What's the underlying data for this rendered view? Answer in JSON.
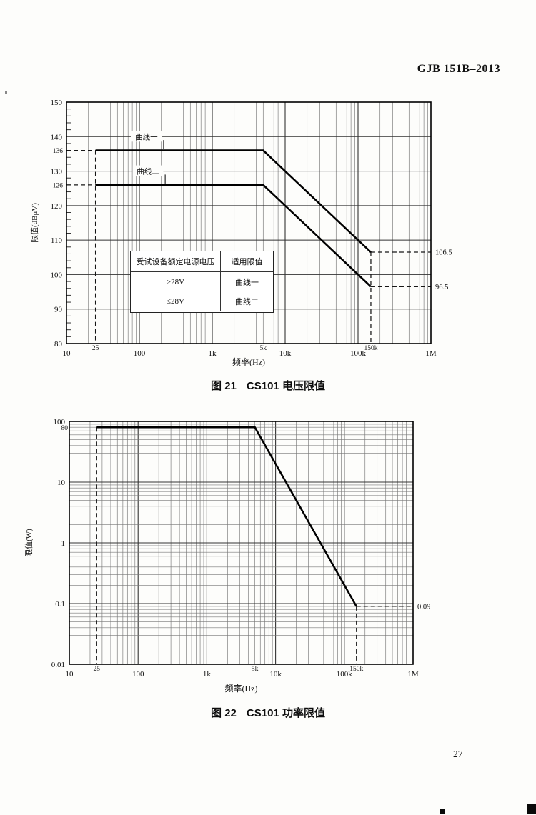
{
  "page": {
    "header": "GJB 151B–2013",
    "page_number": "27"
  },
  "chart_data": [
    {
      "id": "voltage-limit",
      "type": "line",
      "caption": {
        "label": "图 21",
        "title": "CS101 电压限值"
      },
      "xlabel": "频率(Hz)",
      "ylabel": "限值(dBμV)",
      "xscale": "log",
      "yscale": "linear",
      "xlim": [
        10,
        1000000
      ],
      "ylim": [
        80,
        150
      ],
      "grid": "on",
      "xticks": [
        {
          "v": 10,
          "label": "10",
          "kind": "major"
        },
        {
          "v": 25,
          "label": "25",
          "kind": "special"
        },
        {
          "v": 100,
          "label": "100",
          "kind": "major"
        },
        {
          "v": 1000,
          "label": "1k",
          "kind": "major"
        },
        {
          "v": 5000,
          "label": "5k",
          "kind": "special"
        },
        {
          "v": 10000,
          "label": "10k",
          "kind": "major"
        },
        {
          "v": 100000,
          "label": "100k",
          "kind": "major"
        },
        {
          "v": 150000,
          "label": "150k",
          "kind": "special"
        },
        {
          "v": 1000000,
          "label": "1M",
          "kind": "major"
        }
      ],
      "yticks": [
        {
          "v": 150,
          "label": "150",
          "kind": "major"
        },
        {
          "v": 140,
          "label": "140",
          "kind": "major"
        },
        {
          "v": 136,
          "label": "136",
          "kind": "special"
        },
        {
          "v": 130,
          "label": "130",
          "kind": "major"
        },
        {
          "v": 126,
          "label": "126",
          "kind": "special"
        },
        {
          "v": 120,
          "label": "120",
          "kind": "major"
        },
        {
          "v": 110,
          "label": "110",
          "kind": "major"
        },
        {
          "v": 100,
          "label": "100",
          "kind": "major"
        },
        {
          "v": 90,
          "label": "90",
          "kind": "major"
        },
        {
          "v": 80,
          "label": "80",
          "kind": "major"
        }
      ],
      "series": [
        {
          "name": "曲线一",
          "points": [
            [
              25,
              136
            ],
            [
              5000,
              136
            ],
            [
              150000,
              106.5
            ]
          ]
        },
        {
          "name": "曲线二",
          "points": [
            [
              25,
              126
            ],
            [
              5000,
              126
            ],
            [
              150000,
              96.5
            ]
          ]
        }
      ],
      "guides": [
        {
          "type": "h",
          "y": 136,
          "x_from": 10,
          "x_to": 25
        },
        {
          "type": "h",
          "y": 126,
          "x_from": 10,
          "x_to": 25
        },
        {
          "type": "v",
          "x": 25,
          "y_from": 136,
          "y_to": 80
        },
        {
          "type": "v",
          "x": 150000,
          "y_from": 106.5,
          "y_to": 80
        },
        {
          "type": "h",
          "y": 106.5,
          "x_from": 150000,
          "x_to": 1000000
        },
        {
          "type": "h",
          "y": 96.5,
          "x_from": 150000,
          "x_to": 1000000
        }
      ],
      "annotations": [
        {
          "x": 1000000,
          "y": 106.5,
          "text": "106.5"
        },
        {
          "x": 1000000,
          "y": 96.5,
          "text": "96.5"
        }
      ],
      "curve_labels": [
        {
          "text": "曲线一",
          "x": 125,
          "y": 140,
          "leader": {
            "x": 215,
            "y_from": 139,
            "y_to": 136.4
          }
        },
        {
          "text": "曲线二",
          "x": 131,
          "y": 130,
          "leader": {
            "x": 226,
            "y_from": 129,
            "y_to": 126.4
          }
        }
      ],
      "table": {
        "headers": [
          "受试设备额定电源电压",
          "适用限值"
        ],
        "rows": [
          [
            ">28V",
            "曲线一"
          ],
          [
            "≤28V",
            "曲线二"
          ]
        ]
      }
    },
    {
      "id": "power-limit",
      "type": "line",
      "caption": {
        "label": "图 22",
        "title": "CS101 功率限值"
      },
      "xlabel": "频率(Hz)",
      "ylabel": "限值(W)",
      "xscale": "log",
      "yscale": "log",
      "xlim": [
        10,
        1000000
      ],
      "ylim": [
        0.01,
        100
      ],
      "grid": "on",
      "xticks": [
        {
          "v": 10,
          "label": "10",
          "kind": "major"
        },
        {
          "v": 25,
          "label": "25",
          "kind": "special"
        },
        {
          "v": 100,
          "label": "100",
          "kind": "major"
        },
        {
          "v": 1000,
          "label": "1k",
          "kind": "major"
        },
        {
          "v": 5000,
          "label": "5k",
          "kind": "special"
        },
        {
          "v": 10000,
          "label": "10k",
          "kind": "major"
        },
        {
          "v": 100000,
          "label": "100k",
          "kind": "major"
        },
        {
          "v": 150000,
          "label": "150k",
          "kind": "special"
        },
        {
          "v": 1000000,
          "label": "1M",
          "kind": "major"
        }
      ],
      "yticks": [
        {
          "v": 100,
          "label": "100",
          "kind": "major"
        },
        {
          "v": 80,
          "label": "80",
          "kind": "special"
        },
        {
          "v": 10,
          "label": "10",
          "kind": "major"
        },
        {
          "v": 1,
          "label": "1",
          "kind": "major"
        },
        {
          "v": 0.1,
          "label": "0.1",
          "kind": "major"
        },
        {
          "v": 0.01,
          "label": "0.01",
          "kind": "major"
        }
      ],
      "series": [
        {
          "name": "功率限值",
          "points": [
            [
              25,
              80
            ],
            [
              5000,
              80
            ],
            [
              150000,
              0.09
            ]
          ]
        }
      ],
      "guides": [
        {
          "type": "v",
          "x": 25,
          "y_from": 80,
          "y_to": 0.01
        },
        {
          "type": "v",
          "x": 150000,
          "y_from": 0.09,
          "y_to": 0.01
        },
        {
          "type": "h",
          "y": 0.09,
          "x_from": 150000,
          "x_to": 1000000
        }
      ],
      "annotations": [
        {
          "x": 1000000,
          "y": 0.09,
          "text": "0.09"
        }
      ],
      "curve_labels": [],
      "table": null
    }
  ],
  "colors": {
    "grid_minor": "#777777",
    "grid_major": "#333333",
    "border": "#000000",
    "curve": "#000000",
    "text": "#111111"
  }
}
